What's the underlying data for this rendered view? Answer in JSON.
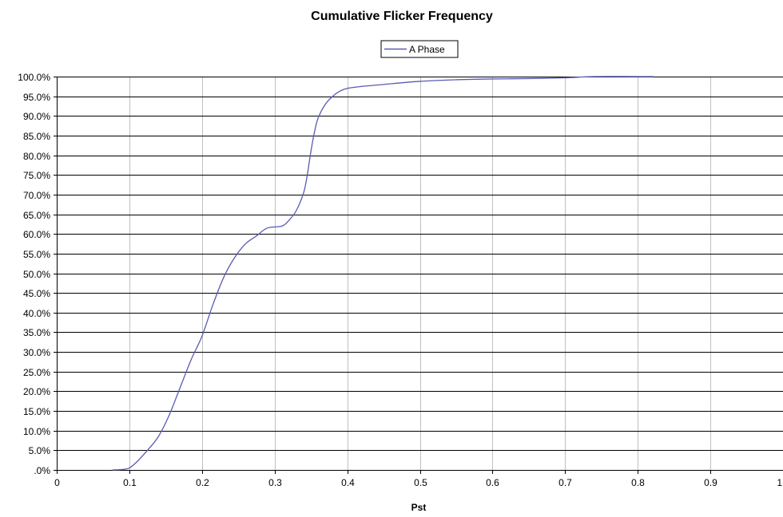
{
  "chart_data": {
    "type": "line",
    "title": "Cumulative Flicker Frequency",
    "xlabel": "Pst",
    "ylabel": "",
    "xlim": [
      0,
      1
    ],
    "ylim": [
      0,
      100
    ],
    "x_ticks": [
      0,
      0.1,
      0.2,
      0.3,
      0.4,
      0.5,
      0.6,
      0.7,
      0.8,
      0.9,
      1
    ],
    "x_tick_labels": [
      "0",
      "0.1",
      "0.2",
      "0.3",
      "0.4",
      "0.5",
      "0.6",
      "0.7",
      "0.8",
      "0.9",
      "1"
    ],
    "y_ticks": [
      0,
      5,
      10,
      15,
      20,
      25,
      30,
      35,
      40,
      45,
      50,
      55,
      60,
      65,
      70,
      75,
      80,
      85,
      90,
      95,
      100
    ],
    "y_tick_labels": [
      ".0%",
      "5.0%",
      "10.0%",
      "15.0%",
      "20.0%",
      "25.0%",
      "30.0%",
      "35.0%",
      "40.0%",
      "45.0%",
      "50.0%",
      "55.0%",
      "60.0%",
      "65.0%",
      "70.0%",
      "75.0%",
      "80.0%",
      "85.0%",
      "90.0%",
      "95.0%",
      "100.0%"
    ],
    "grid": {
      "vertical": true,
      "horizontal": true
    },
    "legend_position": "top-center",
    "series": [
      {
        "name": "A Phase",
        "color": "#5a5ab4",
        "x": [
          0.077,
          0.09,
          0.1,
          0.11,
          0.125,
          0.14,
          0.155,
          0.17,
          0.185,
          0.2,
          0.215,
          0.23,
          0.245,
          0.26,
          0.275,
          0.29,
          0.31,
          0.32,
          0.33,
          0.34,
          0.345,
          0.35,
          0.355,
          0.36,
          0.37,
          0.38,
          0.39,
          0.4,
          0.42,
          0.45,
          0.5,
          0.55,
          0.6,
          0.65,
          0.7,
          0.74,
          0.8,
          0.822
        ],
        "y": [
          0,
          0.1,
          0.5,
          2,
          5,
          8.5,
          14,
          21,
          28,
          34,
          42,
          49,
          54,
          57.5,
          59.5,
          61.5,
          62,
          63.5,
          66,
          70.5,
          75,
          81,
          86,
          89.5,
          93,
          95,
          96.3,
          97,
          97.5,
          98,
          98.8,
          99.2,
          99.4,
          99.5,
          99.7,
          100,
          100,
          100
        ]
      }
    ]
  }
}
